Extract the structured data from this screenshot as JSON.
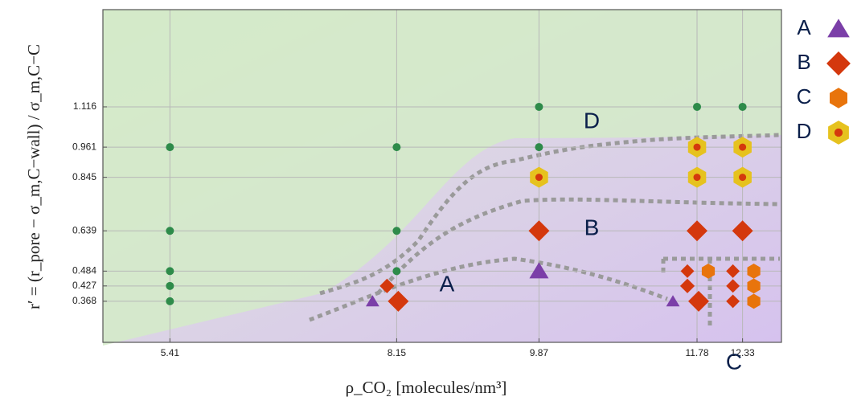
{
  "chart_data": {
    "type": "scatter",
    "xlabel": "ρ_CO₂  [molecules/nm³]",
    "ylabel": "r′ = (r_pore − σ_m,C−wall) / σ_m,C−C",
    "xlim": [
      4.6,
      12.8
    ],
    "ylim": [
      0.21,
      1.49
    ],
    "xticks": [
      5.41,
      8.15,
      9.87,
      11.78,
      12.33
    ],
    "yticks": [
      0.368,
      0.427,
      0.484,
      0.639,
      0.845,
      0.961,
      1.116
    ],
    "grid": true,
    "legend": "right",
    "series": [
      {
        "color": "#2e8b4a",
        "marker": "circle",
        "x": [
          5.41,
          5.41,
          5.41,
          5.41,
          5.41,
          8.15,
          8.15,
          8.15,
          9.87,
          9.87,
          11.78,
          12.33
        ],
        "y": [
          0.961,
          0.639,
          0.484,
          0.427,
          0.368,
          0.961,
          0.639,
          0.484,
          1.116,
          0.961,
          1.116,
          1.116
        ]
      },
      {
        "name": "A",
        "color": "#7b3fa8",
        "marker": "triangle",
        "x": [
          8.15,
          9.87,
          11.78
        ],
        "y": [
          0.368,
          0.484,
          0.368
        ]
      },
      {
        "name": "B",
        "color": "#d4380d",
        "marker": "diamond",
        "x": [
          8.15,
          8.15,
          9.87,
          11.78,
          12.33,
          11.78,
          11.78,
          11.78,
          12.33,
          12.33,
          12.33
        ],
        "y": [
          0.427,
          0.368,
          0.639,
          0.639,
          0.639,
          0.484,
          0.427,
          0.368,
          0.484,
          0.427,
          0.368
        ]
      },
      {
        "name": "C",
        "color": "#e8740c",
        "marker": "hexagon",
        "x": [
          11.78,
          12.33,
          12.33,
          12.33
        ],
        "y": [
          0.484,
          0.484,
          0.427,
          0.368
        ]
      },
      {
        "name": "D",
        "color": "#e6c21e",
        "marker": "hexdot",
        "x": [
          9.87,
          11.78,
          11.78,
          12.33,
          12.33
        ],
        "y": [
          0.845,
          0.961,
          0.845,
          0.961,
          0.845
        ]
      }
    ]
  }
}
